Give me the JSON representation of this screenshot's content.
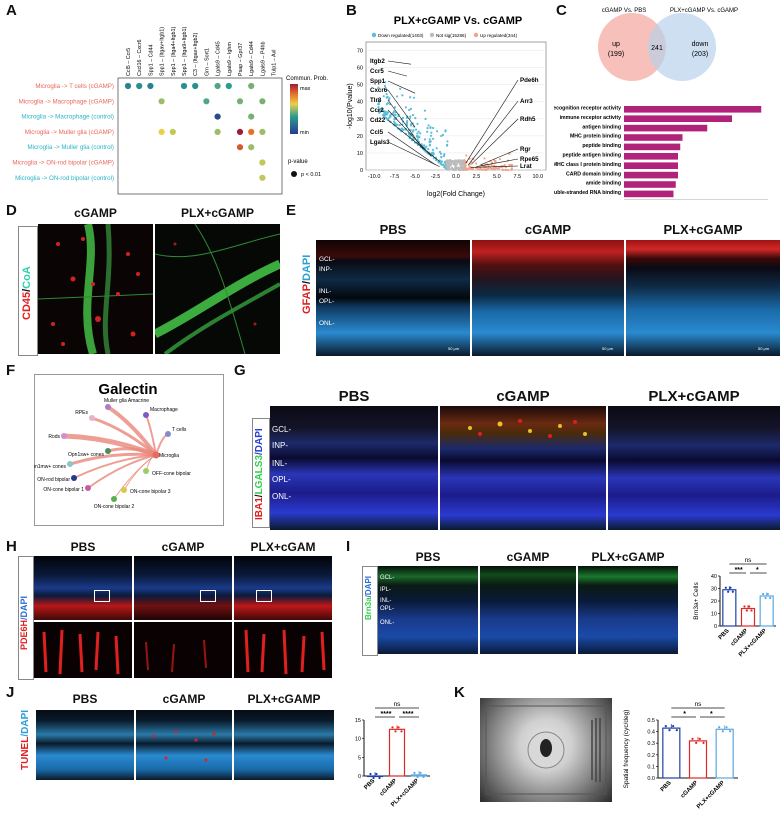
{
  "labels": {
    "A": "A",
    "B": "B",
    "C": "C",
    "D": "D",
    "E": "E",
    "F": "F",
    "G": "G",
    "H": "H",
    "I": "I",
    "J": "J",
    "K": "K"
  },
  "panelA": {
    "columns": [
      "Ccl5 – Ccr5",
      "Cxcl16 – Cxcr6",
      "Spp1 – Cd44",
      "Spp1 – (Itgav+Itgb1)",
      "Spp1 – (Itga4+Itgb1)",
      "Spp1 – (Itga9+Itgb1)",
      "C3 – (Itgax+Itgb2)",
      "Grn – Sort1",
      "Lgals9 – Cd45",
      "Lgals9 – Ighm",
      "Psap – Gpr37",
      "Lgals9 – Cd44",
      "Lgals9 – P4hb",
      "Tulp1 – Axl"
    ],
    "rows": [
      {
        "label": "Microglia -> T cells (cGAMP)",
        "color": "#e8685c"
      },
      {
        "label": "Microglia -> Macrophage (cGAMP)",
        "color": "#e8685c"
      },
      {
        "label": "Microglia -> Macrophage (control)",
        "color": "#2ab3c6"
      },
      {
        "label": "Microglia -> Muller glia (cGAMP)",
        "color": "#e8685c"
      },
      {
        "label": "Microglia -> Muller glia (control)",
        "color": "#2ab3c6"
      },
      {
        "label": "Microglia -> ON-rod bipolar (cGAMP)",
        "color": "#e8685c"
      },
      {
        "label": "Microglia -> ON-rod bipolar (control)",
        "color": "#2ab3c6"
      }
    ],
    "dots": [
      {
        "r": 0,
        "c": 0,
        "v": 0.25
      },
      {
        "r": 0,
        "c": 1,
        "v": 0.3
      },
      {
        "r": 0,
        "c": 2,
        "v": 0.25
      },
      {
        "r": 0,
        "c": 5,
        "v": 0.3
      },
      {
        "r": 0,
        "c": 6,
        "v": 0.3
      },
      {
        "r": 0,
        "c": 8,
        "v": 0.4
      },
      {
        "r": 0,
        "c": 9,
        "v": 0.35
      },
      {
        "r": 0,
        "c": 11,
        "v": 0.45
      },
      {
        "r": 1,
        "c": 3,
        "v": 0.5
      },
      {
        "r": 1,
        "c": 7,
        "v": 0.4
      },
      {
        "r": 1,
        "c": 10,
        "v": 0.45
      },
      {
        "r": 1,
        "c": 12,
        "v": 0.45
      },
      {
        "r": 2,
        "c": 8,
        "v": 0.05
      },
      {
        "r": 2,
        "c": 11,
        "v": 0.45
      },
      {
        "r": 3,
        "c": 3,
        "v": 0.6
      },
      {
        "r": 3,
        "c": 4,
        "v": 0.55
      },
      {
        "r": 3,
        "c": 8,
        "v": 0.5
      },
      {
        "r": 3,
        "c": 10,
        "v": 1.0
      },
      {
        "r": 3,
        "c": 11,
        "v": 0.8
      },
      {
        "r": 3,
        "c": 12,
        "v": 0.5
      },
      {
        "r": 4,
        "c": 10,
        "v": 0.85
      },
      {
        "r": 4,
        "c": 11,
        "v": 0.5
      },
      {
        "r": 5,
        "c": 12,
        "v": 0.55
      },
      {
        "r": 6,
        "c": 12,
        "v": 0.55
      }
    ],
    "legend_title": "Commun. Prob.",
    "legend_max": "max",
    "legend_min": "min",
    "pvalue_title": "p-value",
    "pvalue_label": "p < 0.01"
  },
  "panelB": {
    "title": "PLX+cGAMP Vs. cGAMP",
    "legend": [
      {
        "label": "Down regulated(1403)",
        "color": "#5bbcd6"
      },
      {
        "label": "Not sig(15286)",
        "color": "#bbbbbb"
      },
      {
        "label": "Up regulated(344)",
        "color": "#f0a48a"
      }
    ],
    "xlabel": "log2(Fold Change)",
    "ylabel": "-log10(Pvalue)",
    "xticks": [
      "-10.0",
      "-7.5",
      "-5.0",
      "-2.5",
      "0.0",
      "2.5",
      "5.0",
      "7.5",
      "10.0"
    ],
    "yticks": [
      "0",
      "10",
      "20",
      "30",
      "40",
      "50",
      "60",
      "70"
    ],
    "left_genes": [
      "Itgb2",
      "Ccr5",
      "Spp1",
      "Cxcr6",
      "Tlr8",
      "Ccr2",
      "Cd22",
      "Ccl5",
      "Lgals3"
    ],
    "right_genes": [
      "Pde6h",
      "Arr3",
      "Rdh5",
      "Rgr",
      "Rpe65",
      "Lrat"
    ]
  },
  "panelC": {
    "venn_left_title": "cGAMP Vs. PBS",
    "venn_right_title": "PLX+cGAMP Vs. cGAMP",
    "up_label": "up",
    "up_count": "(199)",
    "overlap": "241",
    "down_label": "down",
    "down_count": "(203)",
    "bar_color": "#b1237a",
    "terms": [
      {
        "label": "pattern recognition receptor activity",
        "value": 30.5
      },
      {
        "label": "immune receptor activity",
        "value": 24
      },
      {
        "label": "antigen binding",
        "value": 18.5
      },
      {
        "label": "MHC protein binding",
        "value": 13
      },
      {
        "label": "peptide binding",
        "value": 12.5
      },
      {
        "label": "peptide antigen binding",
        "value": 12
      },
      {
        "label": "MHC class I protein binding",
        "value": 12
      },
      {
        "label": "CARD domain binding",
        "value": 12
      },
      {
        "label": "amide binding",
        "value": 11.5
      },
      {
        "label": "double-stranded RNA binding",
        "value": 11
      }
    ],
    "xticks": [
      "0",
      "10",
      "20",
      "30"
    ]
  },
  "panelD": {
    "side_a": "CD45",
    "side_b": "/",
    "side_c": "CoA",
    "cond1": "cGAMP",
    "cond2": "PLX+cGAMP"
  },
  "panelE": {
    "side_a": "GFAP",
    "side_b": "/",
    "side_c": "DAPI",
    "cond1": "PBS",
    "cond2": "cGAMP",
    "cond3": "PLX+cGAMP",
    "layers": [
      "GCL-",
      "INP-",
      "INL-",
      "OPL-",
      "ONL-"
    ],
    "scale": "50 μm"
  },
  "panelF": {
    "title": "Galectin",
    "center": "Microglia",
    "nodes": [
      {
        "label": "Muller glia Amacrine",
        "color": "#b07cc6"
      },
      {
        "label": "Macrophage",
        "color": "#7c5cc4"
      },
      {
        "label": "RPEs",
        "color": "#e9b1d0"
      },
      {
        "label": "T cells",
        "color": "#8a8acb"
      },
      {
        "label": "Rods",
        "color": "#d08cd0"
      },
      {
        "label": "Opn1sw+ cones",
        "color": "#4a8c5a"
      },
      {
        "label": "OFF-cone bipolar",
        "color": "#9ccc66"
      },
      {
        "label": "Opn1mw+ cones",
        "color": "#8ac7c0"
      },
      {
        "label": "ON-rod bipolar",
        "color": "#223a8c"
      },
      {
        "label": "ON-cone bipolar 1",
        "color": "#c95aa0"
      },
      {
        "label": "ON-cone bipolar 3",
        "color": "#d9c94a"
      },
      {
        "label": "ON-cone bipolar 2",
        "color": "#5ab04a"
      }
    ]
  },
  "panelG": {
    "side_a": "IBA1",
    "side_b": "/",
    "side_c": "LGALS3",
    "side_d": "/DAPI",
    "cond1": "PBS",
    "cond2": "cGAMP",
    "cond3": "PLX+cGAMP",
    "layers": [
      "GCL-",
      "INP-",
      "INL-",
      "OPL-",
      "ONL-"
    ]
  },
  "panelH": {
    "side_a": "PDE6H",
    "side_b": "/DAPI",
    "cond1": "PBS",
    "cond2": "cGAMP",
    "cond3": "PLX+cGAM"
  },
  "panelI": {
    "side_a": "Brn3a",
    "side_b": "/DAPI",
    "cond1": "PBS",
    "cond2": "cGAMP",
    "cond3": "PLX+cGAMP",
    "layers": [
      "GCL-",
      "IPL-",
      "INL-",
      "OPL-",
      "ONL-"
    ],
    "chart_ylabel": "Brn3a+ Cells",
    "categories": [
      "PBS",
      "cGAMP",
      "PLX+cGAMP"
    ],
    "means": [
      29,
      14,
      24
    ],
    "sig_top": "ns",
    "sig_a": "***",
    "sig_b": "*",
    "yticks": [
      "0",
      "10",
      "20",
      "30",
      "40"
    ]
  },
  "panelJ": {
    "side_a": "TUNEL",
    "side_b": "/DAPI",
    "cond1": "PBS",
    "cond2": "cGAMP",
    "cond3": "PLX+cGAMP",
    "categories": [
      "PBS",
      "cGAMP",
      "PLX+cGAMP"
    ],
    "means": [
      0,
      12.5,
      0.3
    ],
    "sig_top": "ns",
    "sig_a": "****",
    "sig_b": "****",
    "yticks": [
      "0",
      "5",
      "10",
      "15"
    ]
  },
  "panelK": {
    "chart_ylabel": "Spatial frequency (cyc/deg)",
    "categories": [
      "PBS",
      "cGAMP",
      "PLX+cGAMP"
    ],
    "means": [
      0.43,
      0.32,
      0.42
    ],
    "sig_top": "ns",
    "sig_a": "*",
    "sig_b": "*",
    "yticks": [
      "0.0",
      "0.1",
      "0.2",
      "0.3",
      "0.4",
      "0.5"
    ]
  },
  "chart_data": [
    {
      "type": "bar",
      "title": "Brn3a+ Cells",
      "categories": [
        "PBS",
        "cGAMP",
        "PLX+cGAMP"
      ],
      "values": [
        29,
        14,
        24
      ],
      "ylim": [
        0,
        40
      ]
    },
    {
      "type": "bar",
      "title": "TUNEL",
      "categories": [
        "PBS",
        "cGAMP",
        "PLX+cGAMP"
      ],
      "values": [
        0,
        12.5,
        0.3
      ],
      "ylim": [
        0,
        15
      ]
    },
    {
      "type": "bar",
      "title": "Spatial frequency (cyc/deg)",
      "categories": [
        "PBS",
        "cGAMP",
        "PLX+cGAMP"
      ],
      "values": [
        0.43,
        0.32,
        0.42
      ],
      "ylim": [
        0,
        0.5
      ]
    },
    {
      "type": "bar",
      "title": "GO terms",
      "categories": [
        "pattern recognition receptor activity",
        "immune receptor activity",
        "antigen binding",
        "MHC protein binding",
        "peptide binding",
        "peptide antigen binding",
        "MHC class I protein binding",
        "CARD domain binding",
        "amide binding",
        "double-stranded RNA binding"
      ],
      "values": [
        30.5,
        24,
        18.5,
        13,
        12.5,
        12,
        12,
        12,
        11.5,
        11
      ]
    }
  ]
}
